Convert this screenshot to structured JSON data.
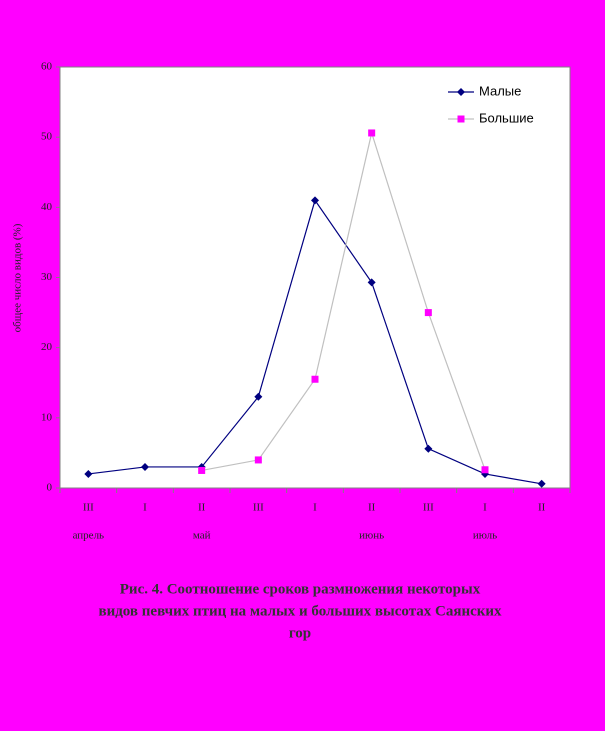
{
  "chart_data": {
    "type": "line",
    "y_label": "общее число видов (%)",
    "caption": [
      "Рис. 4. Соотношение сроков размножения  некоторых",
      "видов певчих птиц на малых и больших высотах Саянских",
      "гор"
    ],
    "categories": [
      "III",
      "I",
      "II",
      "III",
      "I",
      "II",
      "III",
      "I",
      "II"
    ],
    "month_labels": [
      "апрель",
      null,
      "май",
      null,
      null,
      "июнь",
      null,
      "июль",
      null
    ],
    "ylim": [
      0,
      60
    ],
    "yticks": [
      0,
      10,
      20,
      30,
      40,
      50,
      60
    ],
    "legend": "top-right",
    "series": [
      {
        "name": "Малые",
        "color": "#000080",
        "marker_color": "#000080",
        "marker": "diamond",
        "values": [
          2,
          3,
          3,
          13,
          41,
          29.3,
          5.6,
          2,
          0.6
        ]
      },
      {
        "name": "Большие",
        "color": "#c0c0c0",
        "marker_color": "#ff00ff",
        "marker": "square",
        "values": [
          null,
          null,
          2.5,
          4,
          15.5,
          50.6,
          25,
          2.6,
          null
        ]
      }
    ]
  }
}
